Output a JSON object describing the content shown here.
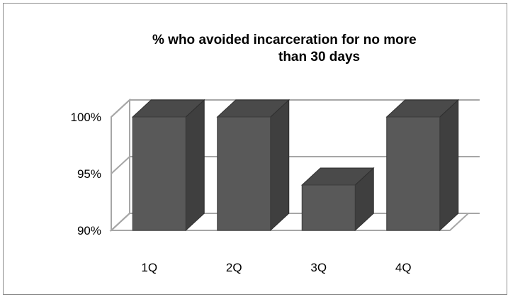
{
  "chart_data": {
    "type": "bar",
    "title_line1": "% who avoided incarceration for no more",
    "title_line2": "than 30 days",
    "categories": [
      "1Q",
      "2Q",
      "3Q",
      "4Q"
    ],
    "values": [
      100,
      100,
      94,
      100
    ],
    "ylim": [
      90,
      100
    ],
    "yticks": [
      "90%",
      "95%",
      "100%"
    ],
    "xlabel": "",
    "ylabel": "",
    "grid": true,
    "bar_style": "3d",
    "colors": {
      "bar_front": "#595959",
      "bar_side": "#3f3f3f",
      "bar_top": "#4a4a4a",
      "grid": "#a6a6a6",
      "wall": "#ffffff"
    }
  }
}
